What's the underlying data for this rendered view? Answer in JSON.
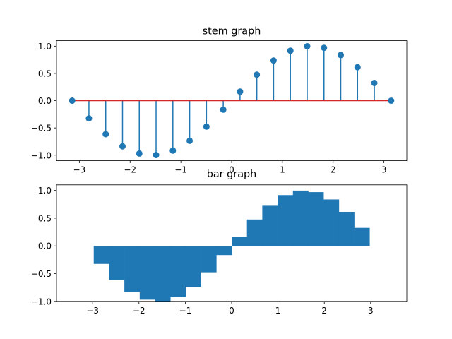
{
  "colors": {
    "series": "#1f77b4",
    "baseline": "#d62728",
    "axes": "#000000",
    "background": "#ffffff"
  },
  "chart_data": [
    {
      "type": "stem",
      "title": "stem graph",
      "xlabel": "",
      "ylabel": "",
      "xlim": [
        -3.45,
        3.45
      ],
      "ylim": [
        -1.1,
        1.1
      ],
      "xticks": [
        -3,
        -2,
        -1,
        0,
        1,
        2,
        3
      ],
      "yticks": [
        -1.0,
        -0.5,
        0.0,
        0.5,
        1.0
      ],
      "xtick_labels": [
        "−3",
        "−2",
        "−1",
        "0",
        "1",
        "2",
        "3"
      ],
      "ytick_labels": [
        "−1.0",
        "−0.5",
        "0.0",
        "0.5",
        "1.0"
      ],
      "grid": false,
      "baseline": 0,
      "x": [
        -3.1416,
        -2.8109,
        -2.4802,
        -2.1495,
        -1.8188,
        -1.4881,
        -1.1574,
        -0.8267,
        -0.496,
        -0.1653,
        0.1653,
        0.496,
        0.8267,
        1.1574,
        1.4881,
        1.8188,
        2.1495,
        2.4802,
        2.8109,
        3.1416
      ],
      "y": [
        0.0,
        -0.325,
        -0.614,
        -0.837,
        -0.969,
        -0.997,
        -0.916,
        -0.736,
        -0.476,
        -0.165,
        0.165,
        0.476,
        0.736,
        0.916,
        0.997,
        0.969,
        0.837,
        0.614,
        0.325,
        0.0
      ]
    },
    {
      "type": "bar",
      "title": "bar graph",
      "xlabel": "",
      "ylabel": "",
      "xlim": [
        -3.78,
        3.78
      ],
      "ylim": [
        -1.0,
        1.1
      ],
      "xticks": [
        -3,
        -2,
        -1,
        0,
        1,
        2,
        3
      ],
      "yticks": [
        -1.0,
        -0.5,
        0.0,
        0.5,
        1.0
      ],
      "xtick_labels": [
        "−3",
        "−2",
        "−1",
        "0",
        "1",
        "2",
        "3"
      ],
      "ytick_labels": [
        "−1.0",
        "−0.5",
        "0.0",
        "0.5",
        "1.0"
      ],
      "grid": false,
      "bar_width": 0.3307,
      "x": [
        -3.1416,
        -2.8109,
        -2.4802,
        -2.1495,
        -1.8188,
        -1.4881,
        -1.1574,
        -0.8267,
        -0.496,
        -0.1653,
        0.1653,
        0.496,
        0.8267,
        1.1574,
        1.4881,
        1.8188,
        2.1495,
        2.4802,
        2.8109,
        3.1416
      ],
      "values": [
        0.0,
        -0.325,
        -0.614,
        -0.837,
        -0.969,
        -0.997,
        -0.916,
        -0.736,
        -0.476,
        -0.165,
        0.165,
        0.476,
        0.736,
        0.916,
        0.997,
        0.969,
        0.837,
        0.614,
        0.325,
        0.0
      ]
    }
  ]
}
